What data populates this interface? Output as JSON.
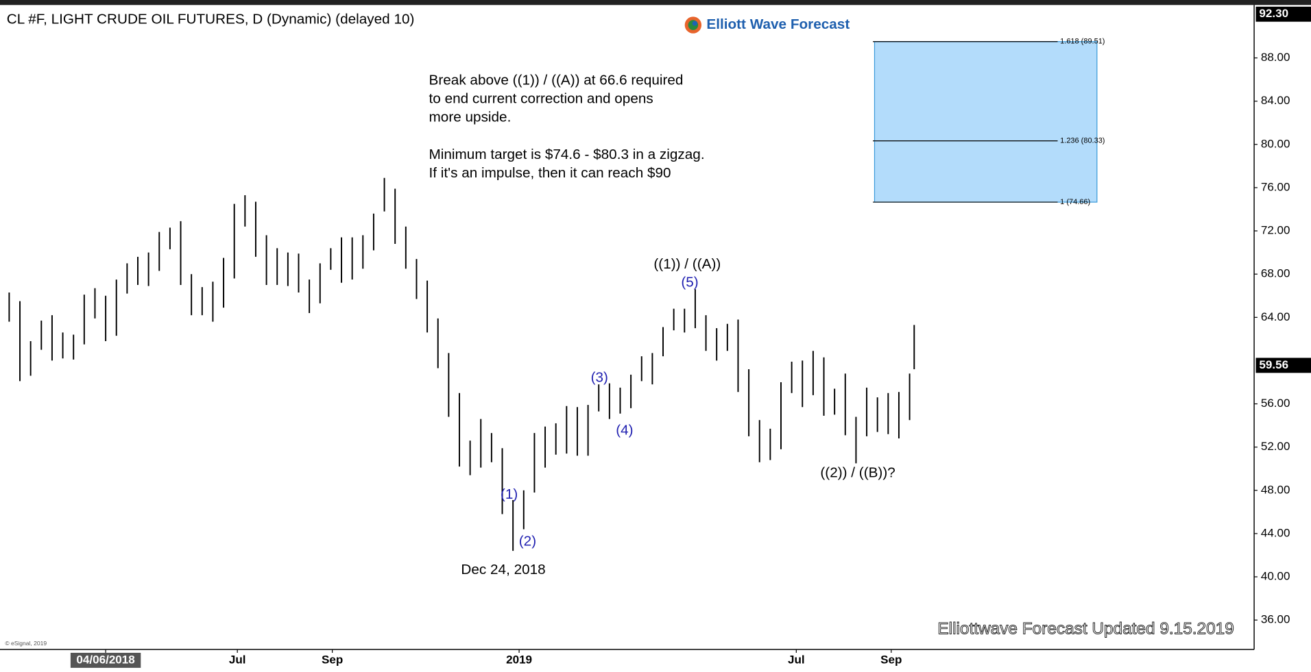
{
  "chart_data": {
    "type": "ohlc",
    "title": "CL #F, LIGHT CRUDE OIL FUTURES, D (Dynamic) (delayed 10)",
    "brand": "Elliott Wave Forecast",
    "notes": [
      "Break above ((1)) / ((A)) at 66.6 required",
      "to end current correction and opens",
      "more upside.",
      "Minimum target is $74.6 - $80.3 in a zigzag.",
      "If it's an impulse, then it can reach $90"
    ],
    "wave_labels": [
      "((1)) / ((A))",
      "(5)",
      "(3)",
      "(4)",
      "(1)",
      "(2)",
      "Dec 24, 2018",
      "((2)) / ((B))?"
    ],
    "footer": "Elliottwave Forecast Updated 9.15.2019",
    "copyright": "© eSignal, 2019",
    "color": "#000000",
    "x": [
      "2018-02-02",
      "2018-02-09",
      "2018-02-16",
      "2018-02-23",
      "2018-03-02",
      "2018-03-09",
      "2018-03-16",
      "2018-03-23",
      "2018-03-30",
      "2018-04-06",
      "2018-04-13",
      "2018-04-20",
      "2018-04-27",
      "2018-05-04",
      "2018-05-11",
      "2018-05-18",
      "2018-05-25",
      "2018-06-01",
      "2018-06-08",
      "2018-06-15",
      "2018-06-22",
      "2018-06-29",
      "2018-07-06",
      "2018-07-13",
      "2018-07-20",
      "2018-07-27",
      "2018-08-03",
      "2018-08-10",
      "2018-08-17",
      "2018-08-24",
      "2018-08-31",
      "2018-09-07",
      "2018-09-14",
      "2018-09-21",
      "2018-09-28",
      "2018-10-05",
      "2018-10-12",
      "2018-10-19",
      "2018-10-26",
      "2018-11-02",
      "2018-11-09",
      "2018-11-16",
      "2018-11-23",
      "2018-11-30",
      "2018-12-07",
      "2018-12-14",
      "2018-12-21",
      "2018-12-28",
      "2019-01-04",
      "2019-01-11",
      "2019-01-18",
      "2019-01-25",
      "2019-02-01",
      "2019-02-08",
      "2019-02-15",
      "2019-02-22",
      "2019-03-01",
      "2019-03-08",
      "2019-03-15",
      "2019-03-22",
      "2019-03-29",
      "2019-04-05",
      "2019-04-12",
      "2019-04-19",
      "2019-04-26",
      "2019-05-03",
      "2019-05-10",
      "2019-05-17",
      "2019-05-24",
      "2019-05-31",
      "2019-06-07",
      "2019-06-14",
      "2019-06-21",
      "2019-06-28",
      "2019-07-05",
      "2019-07-12",
      "2019-07-19",
      "2019-07-26",
      "2019-08-02",
      "2019-08-09",
      "2019-08-16",
      "2019-08-23",
      "2019-08-30",
      "2019-09-06",
      "2019-09-13",
      "2019-09-16"
    ],
    "high": [
      66.3,
      65.5,
      61.8,
      63.7,
      64.2,
      62.6,
      62.4,
      66.1,
      66.7,
      66.0,
      67.5,
      69.0,
      69.6,
      70.0,
      71.9,
      72.3,
      72.9,
      68.0,
      66.8,
      67.3,
      69.5,
      74.5,
      75.3,
      74.7,
      71.6,
      70.4,
      70.0,
      69.9,
      67.5,
      69.0,
      70.4,
      71.4,
      71.4,
      71.6,
      73.6,
      76.9,
      75.9,
      72.4,
      69.4,
      67.4,
      63.9,
      60.7,
      57.0,
      52.6,
      54.6,
      53.3,
      51.9,
      47.1,
      48.0,
      53.3,
      53.9,
      54.2,
      55.8,
      55.7,
      55.9,
      57.8,
      57.9,
      57.5,
      58.7,
      60.4,
      60.7,
      63.1,
      64.8,
      64.8,
      66.6,
      64.2,
      63.0,
      63.4,
      63.8,
      59.2,
      54.5,
      53.7,
      58.0,
      59.9,
      60.0,
      60.9,
      60.3,
      57.4,
      58.8,
      54.8,
      57.5,
      56.6,
      57.0,
      57.1,
      58.8,
      63.3
    ],
    "low": [
      63.6,
      58.1,
      58.6,
      61.0,
      60.0,
      60.2,
      60.1,
      61.5,
      63.9,
      61.8,
      62.3,
      66.2,
      67.0,
      66.9,
      68.3,
      70.3,
      67.0,
      64.2,
      64.2,
      63.6,
      64.9,
      67.6,
      72.4,
      69.6,
      67.0,
      67.0,
      66.9,
      66.3,
      64.4,
      65.3,
      68.4,
      67.2,
      67.5,
      68.5,
      70.2,
      73.8,
      70.8,
      68.5,
      65.7,
      62.6,
      59.3,
      54.8,
      50.2,
      49.4,
      50.1,
      50.6,
      45.8,
      42.4,
      44.4,
      47.8,
      50.1,
      51.3,
      51.4,
      51.2,
      51.2,
      55.3,
      54.6,
      55.1,
      55.6,
      58.1,
      57.8,
      60.4,
      62.8,
      62.6,
      63.0,
      60.9,
      60.0,
      60.9,
      57.1,
      53.0,
      50.6,
      50.8,
      51.8,
      57.0,
      55.7,
      56.8,
      54.9,
      55.0,
      53.1,
      50.5,
      53.0,
      53.4,
      53.2,
      52.8,
      54.5,
      59.2
    ],
    "xlim": [
      "2018-01-27",
      "2020-04-25"
    ],
    "xticks": [
      {
        "value": "2018-04-06",
        "label": "04/06/2018"
      },
      {
        "value": "2018-07-01",
        "label": "Jul"
      },
      {
        "value": "2018-09-01",
        "label": "Sep"
      },
      {
        "value": "2019-01-01",
        "label": "2019"
      },
      {
        "value": "2019-07-01",
        "label": "Jul"
      },
      {
        "value": "2019-09-01",
        "label": "Sep"
      }
    ],
    "ylim": [
      33.28,
      92.74
    ],
    "yticks": [
      {
        "value": 88,
        "label": "88.00"
      },
      {
        "value": 84,
        "label": "84.00"
      },
      {
        "value": 80,
        "label": "80.00"
      },
      {
        "value": 76,
        "label": "76.00"
      },
      {
        "value": 72,
        "label": "72.00"
      },
      {
        "value": 68,
        "label": "68.00"
      },
      {
        "value": 64,
        "label": "64.00"
      },
      {
        "value": 56,
        "label": "56.00"
      },
      {
        "value": 52,
        "label": "52.00"
      },
      {
        "value": 48,
        "label": "48.00"
      },
      {
        "value": 44,
        "label": "44.00"
      },
      {
        "value": 40,
        "label": "40.00"
      },
      {
        "value": 36,
        "label": "36.00"
      }
    ],
    "price_flags": [
      {
        "value": 92.3,
        "label": "92.30"
      },
      {
        "value": 59.56,
        "label": "59.56"
      }
    ],
    "fib_levels": [
      {
        "value": 89.51,
        "label": "1.618 (89.51)"
      },
      {
        "value": 80.33,
        "label": "1.236 (80.33)"
      },
      {
        "value": 74.66,
        "label": "1 (74.66)"
      }
    ],
    "fib_color": "#b3dcfb"
  }
}
